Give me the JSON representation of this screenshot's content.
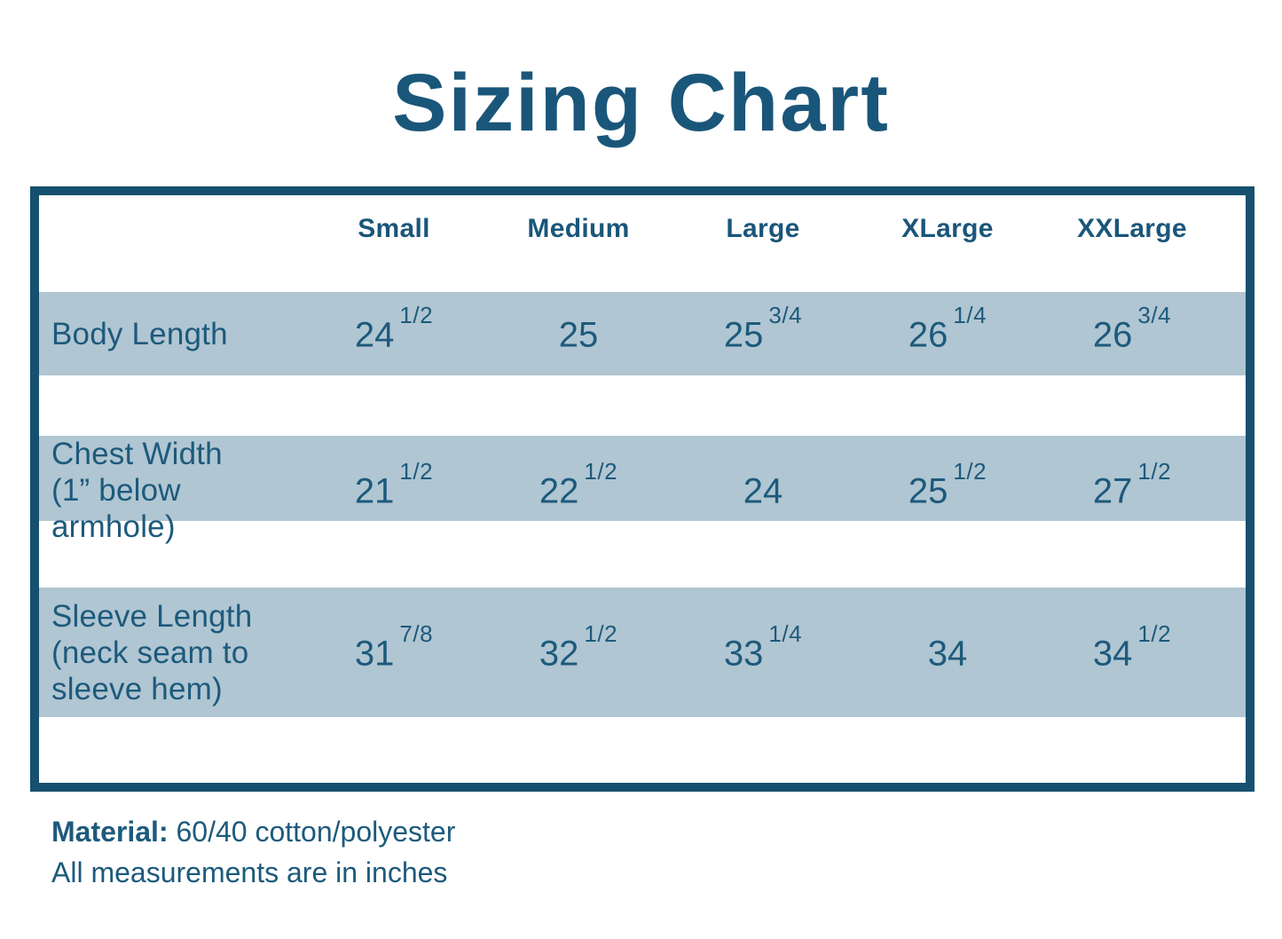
{
  "title": "Sizing Chart",
  "colors": {
    "accent_dark": "#16506e",
    "text_blue": "#1d5a7c",
    "row_shade": "#b0c6d2",
    "background": "#ffffff"
  },
  "table": {
    "columns": [
      "Small",
      "Medium",
      "Large",
      "XLarge",
      "XXLarge"
    ],
    "rows": [
      {
        "label_lines": [
          "Body Length"
        ],
        "values": [
          {
            "whole": "24",
            "frac": "1/2"
          },
          {
            "whole": "25",
            "frac": ""
          },
          {
            "whole": "25",
            "frac": "3/4"
          },
          {
            "whole": "26",
            "frac": "1/4"
          },
          {
            "whole": "26",
            "frac": "3/4"
          }
        ]
      },
      {
        "label_lines": [
          "Chest Width",
          "(1” below armhole)"
        ],
        "values": [
          {
            "whole": "21",
            "frac": "1/2"
          },
          {
            "whole": "22",
            "frac": "1/2"
          },
          {
            "whole": "24",
            "frac": ""
          },
          {
            "whole": "25",
            "frac": "1/2"
          },
          {
            "whole": "27",
            "frac": "1/2"
          }
        ]
      },
      {
        "label_lines": [
          "Sleeve Length",
          "(neck seam to",
          "sleeve hem)"
        ],
        "values": [
          {
            "whole": "31",
            "frac": "7/8"
          },
          {
            "whole": "32",
            "frac": "1/2"
          },
          {
            "whole": "33",
            "frac": "1/4"
          },
          {
            "whole": "34",
            "frac": ""
          },
          {
            "whole": "34",
            "frac": "1/2"
          }
        ]
      }
    ]
  },
  "footer": {
    "material_label": "Material:",
    "material_value": " 60/40 cotton/polyester",
    "note": "All measurements are in inches"
  },
  "chart_data": {
    "type": "table",
    "title": "Sizing Chart",
    "columns": [
      "",
      "Small",
      "Medium",
      "Large",
      "XLarge",
      "XXLarge"
    ],
    "rows": [
      [
        "Body Length",
        "24 1/2",
        "25",
        "25 3/4",
        "26 1/4",
        "26 3/4"
      ],
      [
        "Chest Width (1” below armhole)",
        "21 1/2",
        "22 1/2",
        "24",
        "25 1/2",
        "27 1/2"
      ],
      [
        "Sleeve Length (neck seam to sleeve hem)",
        "31 7/8",
        "32 1/2",
        "33 1/4",
        "34",
        "34 1/2"
      ]
    ],
    "units": "inches",
    "notes": [
      "Material: 60/40 cotton/polyester",
      "All measurements are in inches"
    ]
  }
}
